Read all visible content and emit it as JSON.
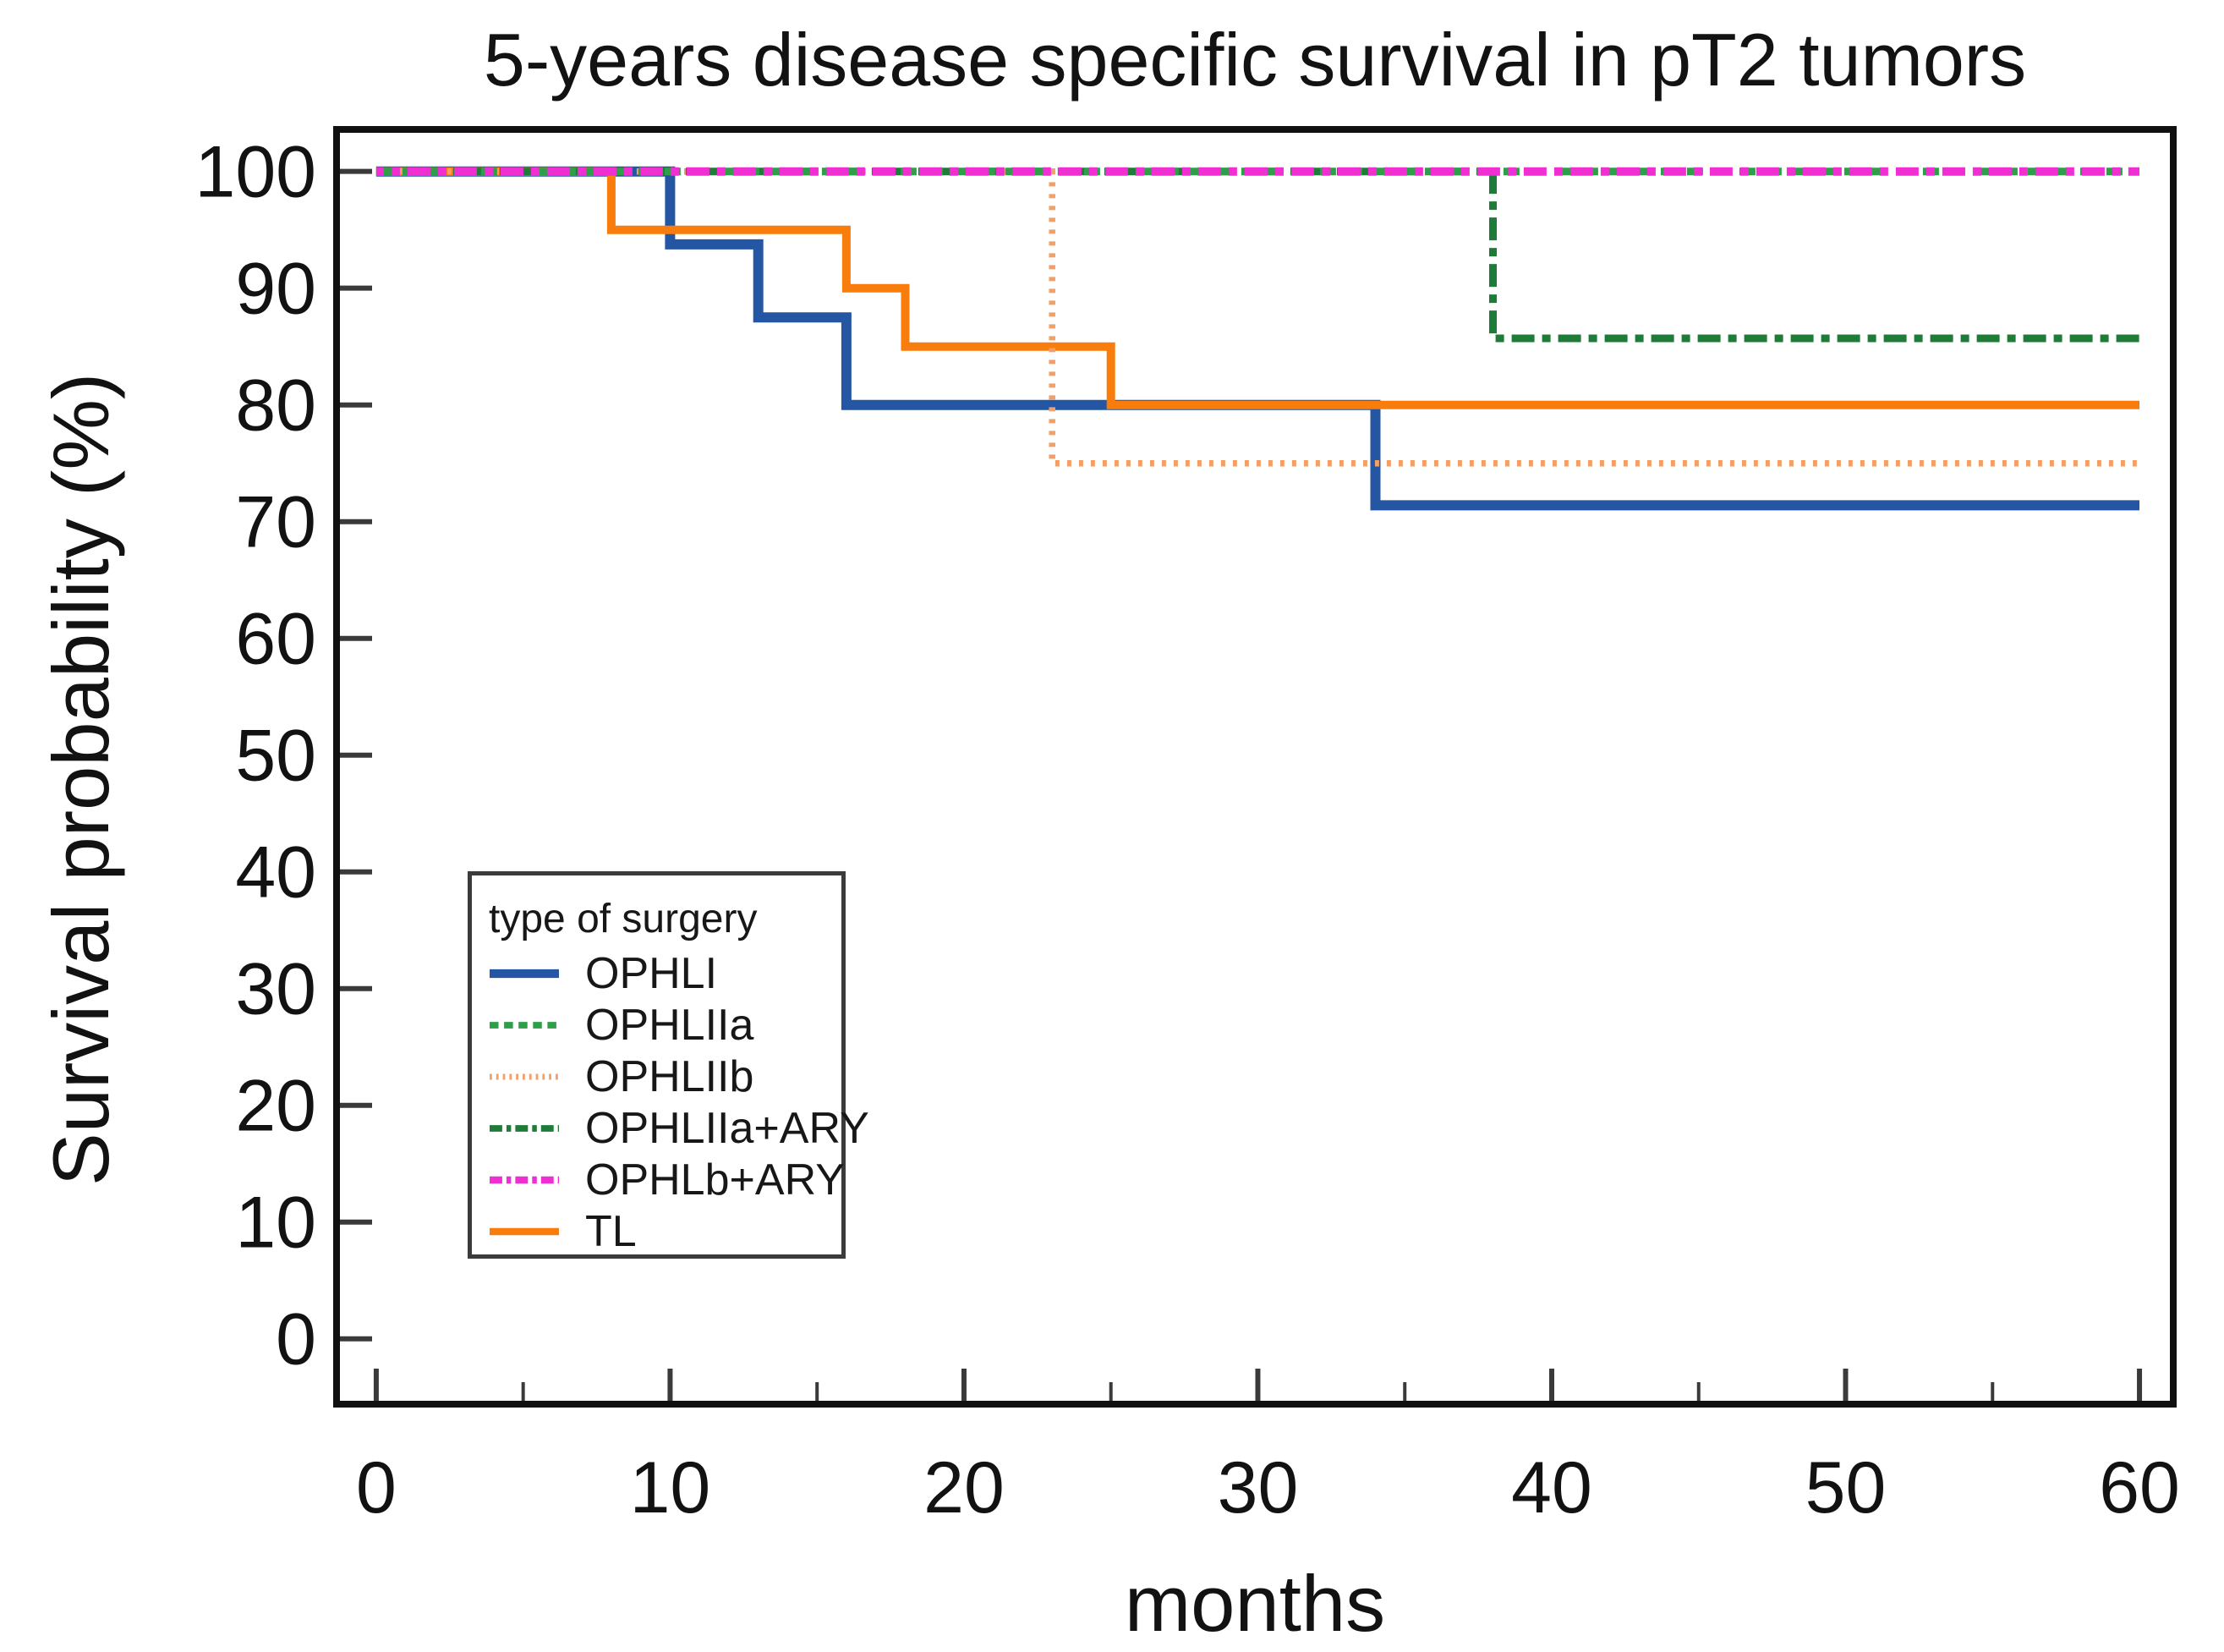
{
  "chart_data": {
    "type": "line",
    "chart_style": "kaplan-meier-step",
    "title": "5-years disease specific survival in pT2 tumors",
    "xlabel": "months",
    "ylabel": "Survival probability (%)",
    "xlim": [
      -1.35,
      61.15
    ],
    "ylim": [
      -5.6,
      103.6
    ],
    "x_ticks_major": [
      0,
      10,
      20,
      30,
      40,
      50,
      60
    ],
    "x_ticks_minor": [
      5,
      15,
      25,
      35,
      45,
      55
    ],
    "y_ticks": [
      0,
      10,
      20,
      30,
      40,
      50,
      60,
      70,
      80,
      90,
      100
    ],
    "grid": false,
    "axis_color": "#111111",
    "legend": {
      "title": "type of surgery",
      "position": "lower-left-inside"
    },
    "series": [
      {
        "name": "OPHLI",
        "color": "#2456A3",
        "line_style": "solid",
        "points": [
          [
            0,
            100
          ],
          [
            10,
            100
          ],
          [
            10,
            93.75
          ],
          [
            13,
            93.75
          ],
          [
            13,
            87.5
          ],
          [
            16,
            87.5
          ],
          [
            16,
            80
          ],
          [
            34,
            80
          ],
          [
            34,
            71.4
          ],
          [
            60,
            71.4
          ]
        ]
      },
      {
        "name": "OPHLIIa",
        "color": "#2F9E48",
        "line_style": "dashed",
        "points": [
          [
            0,
            100
          ],
          [
            60,
            100
          ]
        ]
      },
      {
        "name": "OPHLIIb",
        "color": "#F2A068",
        "line_style": "dotted",
        "points": [
          [
            0,
            100
          ],
          [
            23,
            100
          ],
          [
            23,
            75
          ],
          [
            60,
            75
          ]
        ]
      },
      {
        "name": "OPHLIIa+ARY",
        "color": "#1E7C38",
        "line_style": "dashdot",
        "points": [
          [
            0,
            100
          ],
          [
            38,
            100
          ],
          [
            38,
            85.7
          ],
          [
            60,
            85.7
          ]
        ]
      },
      {
        "name": "OPHLb+ARY",
        "color": "#EF2FD2",
        "line_style": "dashdot",
        "points": [
          [
            0,
            100
          ],
          [
            60,
            100
          ]
        ]
      },
      {
        "name": "TL",
        "color": "#F87D0C",
        "line_style": "solid",
        "points": [
          [
            0,
            100
          ],
          [
            8,
            100
          ],
          [
            8,
            95
          ],
          [
            16,
            95
          ],
          [
            16,
            90
          ],
          [
            18,
            90
          ],
          [
            18,
            85
          ],
          [
            25,
            85
          ],
          [
            25,
            80
          ],
          [
            60,
            80
          ]
        ]
      }
    ],
    "draw_order": [
      "OPHLI",
      "TL",
      "OPHLIIb",
      "OPHLIIa+ARY",
      "OPHLIIa",
      "OPHLb+ARY"
    ]
  }
}
